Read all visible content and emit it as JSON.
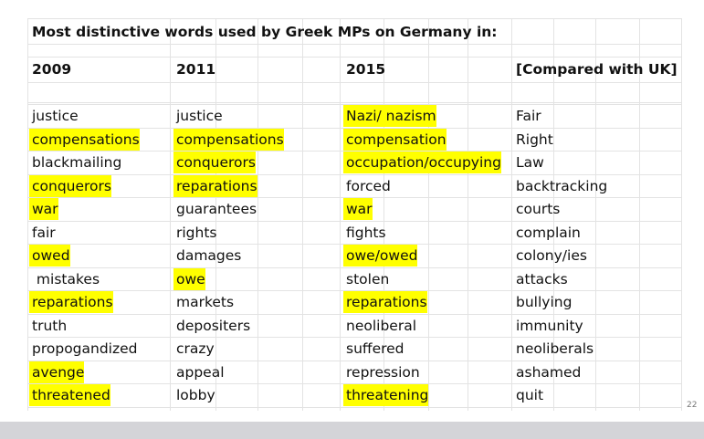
{
  "title": "Most distinctive words used by Greek MPs on Germany in:",
  "highlight_color": "#ffff00",
  "columns": [
    {
      "header": "2009",
      "rows": [
        {
          "text": "justice",
          "highlight": false
        },
        {
          "text": "compensations",
          "highlight": true
        },
        {
          "text": "blackmailing",
          "highlight": false
        },
        {
          "text": "conquerors",
          "highlight": true
        },
        {
          "text": "war",
          "highlight": true
        },
        {
          "text": "fair",
          "highlight": false
        },
        {
          "text": "owed",
          "highlight": true
        },
        {
          "text": " mistakes",
          "highlight": false
        },
        {
          "text": "reparations",
          "highlight": true
        },
        {
          "text": "truth",
          "highlight": false
        },
        {
          "text": "propogandized",
          "highlight": false
        },
        {
          "text": "avenge",
          "highlight": true
        },
        {
          "text": "threatened",
          "highlight": true
        }
      ]
    },
    {
      "header": "2011",
      "rows": [
        {
          "text": "justice",
          "highlight": false
        },
        {
          "text": "compensations",
          "highlight": true
        },
        {
          "text": "conquerors",
          "highlight": true
        },
        {
          "text": "reparations",
          "highlight": true
        },
        {
          "text": "guarantees",
          "highlight": false
        },
        {
          "text": "rights",
          "highlight": false
        },
        {
          "text": "damages",
          "highlight": false
        },
        {
          "text": "owe",
          "highlight": true
        },
        {
          "text": "markets",
          "highlight": false
        },
        {
          "text": "depositers",
          "highlight": false
        },
        {
          "text": "crazy",
          "highlight": false
        },
        {
          "text": "appeal",
          "highlight": false
        },
        {
          "text": "lobby",
          "highlight": false
        }
      ]
    },
    {
      "header": "2015",
      "rows": [
        {
          "text": "Nazi/ nazism",
          "highlight": true
        },
        {
          "text": "compensation",
          "highlight": true
        },
        {
          "text": "occupation/occupying",
          "highlight": true
        },
        {
          "text": "forced",
          "highlight": false
        },
        {
          "text": "war",
          "highlight": true
        },
        {
          "text": "fights",
          "highlight": false
        },
        {
          "text": "owe/owed",
          "highlight": true
        },
        {
          "text": "stolen",
          "highlight": false
        },
        {
          "text": "reparations",
          "highlight": true
        },
        {
          "text": "neoliberal",
          "highlight": false
        },
        {
          "text": "suffered",
          "highlight": false
        },
        {
          "text": "repression",
          "highlight": false
        },
        {
          "text": "threatening",
          "highlight": true
        }
      ]
    },
    {
      "header": "[Compared with UK]",
      "rows": [
        {
          "text": "Fair",
          "highlight": false
        },
        {
          "text": "Right",
          "highlight": false
        },
        {
          "text": "Law",
          "highlight": false
        },
        {
          "text": "backtracking",
          "highlight": false
        },
        {
          "text": "courts",
          "highlight": false
        },
        {
          "text": "complain",
          "highlight": false
        },
        {
          "text": "colony/ies",
          "highlight": false
        },
        {
          "text": "attacks",
          "highlight": false
        },
        {
          "text": "bullying",
          "highlight": false
        },
        {
          "text": "immunity",
          "highlight": false
        },
        {
          "text": "neoliberals",
          "highlight": false
        },
        {
          "text": "ashamed",
          "highlight": false
        },
        {
          "text": "quit",
          "highlight": false
        }
      ]
    }
  ],
  "page_number": "22"
}
